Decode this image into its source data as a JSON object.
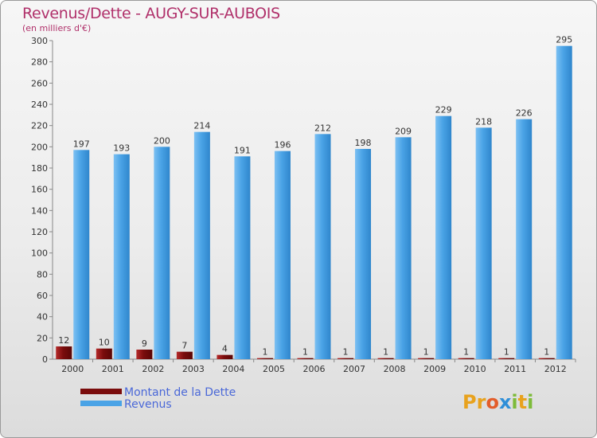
{
  "title": "Revenus/Dette - AUGY-SUR-AUBOIS",
  "subtitle": "(en milliers d'€)",
  "colors": {
    "dette": "#7a0c0c",
    "revenus": "#4aa3e6",
    "title": "#b0306a",
    "legend_text": "#4a68d8"
  },
  "legend": [
    {
      "label": "Montant de la Dette",
      "color": "#7a0c0c"
    },
    {
      "label": "Revenus",
      "color": "#4aa3e6"
    }
  ],
  "logo": {
    "letters": [
      "P",
      "r",
      "o",
      "x",
      "i",
      "t",
      "i"
    ],
    "colors": [
      "#e8a21d",
      "#e8a21d",
      "#e35d2a",
      "#2f8fd8",
      "#7dbb3a",
      "#e8a21d",
      "#7dbb3a"
    ]
  },
  "chart_data": {
    "type": "bar",
    "categories": [
      "2000",
      "2001",
      "2002",
      "2003",
      "2004",
      "2005",
      "2006",
      "2007",
      "2008",
      "2009",
      "2010",
      "2011",
      "2012"
    ],
    "series": [
      {
        "name": "Montant de la Dette",
        "values": [
          12,
          10,
          9,
          7,
          4,
          1,
          1,
          1,
          1,
          1,
          1,
          1,
          1
        ]
      },
      {
        "name": "Revenus",
        "values": [
          197,
          193,
          200,
          214,
          191,
          196,
          212,
          198,
          209,
          229,
          218,
          226,
          295
        ]
      }
    ],
    "ylim": [
      0,
      300
    ],
    "yticks": [
      0,
      20,
      40,
      60,
      80,
      100,
      120,
      140,
      160,
      180,
      200,
      220,
      240,
      260,
      280,
      300
    ],
    "grid": false,
    "legend_position": "bottom-left"
  }
}
